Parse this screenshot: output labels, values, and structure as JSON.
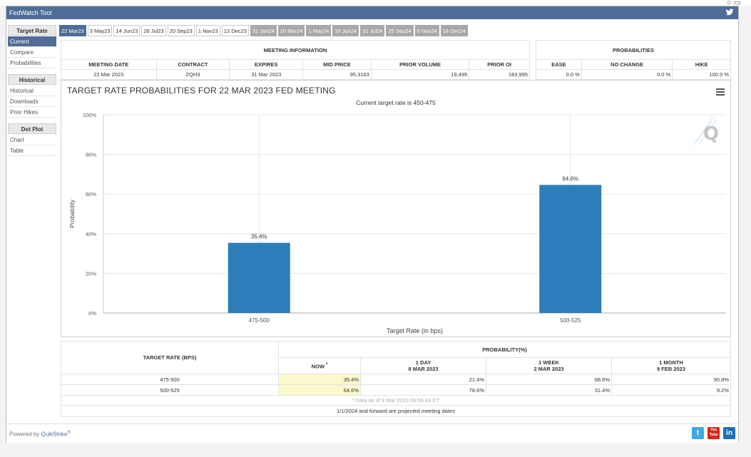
{
  "app": {
    "title": "FedWatch Tool",
    "powered_prefix": "Powered by ",
    "powered_brand": "QuikStrike",
    "powered_mark": "®"
  },
  "sidebar": {
    "sections": [
      {
        "head": "Target Rate",
        "items": [
          "Current",
          "Compare",
          "Probabilities"
        ]
      },
      {
        "head": "Historical",
        "items": [
          "Historical",
          "Downloads",
          "Prior Hikes"
        ]
      },
      {
        "head": "Dot Plot",
        "items": [
          "Chart",
          "Table"
        ]
      }
    ],
    "active": "Current"
  },
  "tabs": [
    "22 Mar23",
    "3 May23",
    "14 Jun23",
    "26 Jul23",
    "20 Sep23",
    "1 Nov23",
    "13 Dec23",
    "31 Jan24",
    "20 Mar24",
    "1 May24",
    "19 Jun24",
    "31 Jul24",
    "25 Sep24",
    "6 Nov24",
    "18 Dec24"
  ],
  "meeting_info": {
    "header": "MEETING INFORMATION",
    "columns": [
      "MEETING DATE",
      "CONTRACT",
      "EXPIRES",
      "MID PRICE",
      "PRIOR VOLUME",
      "PRIOR OI"
    ],
    "values": [
      "22 Mar 2023",
      "ZQH3",
      "31 Mar 2023",
      "95.3163",
      "19,495",
      "183,995"
    ]
  },
  "probabilities": {
    "header": "PROBABILITIES",
    "columns": [
      "EASE",
      "NO CHANGE",
      "HIKE"
    ],
    "values": [
      "0.0 %",
      "0.0 %",
      "100.0 %"
    ]
  },
  "chart": {
    "title": "TARGET RATE PROBABILITIES FOR 22 MAR 2023 FED MEETING",
    "subtitle": "Current target rate is 450-475"
  },
  "chart_data": {
    "type": "bar",
    "title": "TARGET RATE PROBABILITIES FOR 22 MAR 2023 FED MEETING",
    "subtitle": "Current target rate is 450-475",
    "categories": [
      "475-500",
      "500-525"
    ],
    "values": [
      35.4,
      64.6
    ],
    "data_labels": [
      "35.4%",
      "64.6%"
    ],
    "xlabel": "Target Rate (in bps)",
    "ylabel": "Probability",
    "ylim": [
      0,
      100
    ],
    "yticks": [
      "0%",
      "20%",
      "40%",
      "60%",
      "80%",
      "100%"
    ],
    "bar_color": "#2e7dbb",
    "grid": true
  },
  "bottom_table": {
    "target_header": "TARGET RATE (BPS)",
    "prob_header": "PROBABILITY(%)",
    "cols": [
      {
        "line1": "NOW",
        "line2": ""
      },
      {
        "line1": "1 DAY",
        "line2": "8 MAR 2023"
      },
      {
        "line1": "1 WEEK",
        "line2": "2 MAR 2023"
      },
      {
        "line1": "1 MONTH",
        "line2": "9 FEB 2023"
      }
    ],
    "now_mark": "*",
    "rows": [
      {
        "rate": "475-500",
        "vals": [
          "35.4%",
          "21.4%",
          "68.6%",
          "90.8%"
        ]
      },
      {
        "rate": "500-525",
        "vals": [
          "64.6%",
          "78.6%",
          "31.4%",
          "9.2%"
        ]
      }
    ],
    "note": "* Data as of 9 Mar 2023 09:05:43 CT",
    "footnote": "1/1/2024 and forward are projected meeting dates"
  },
  "social": {
    "twitter": "t",
    "youtube_top": "You",
    "youtube_bottom": "Tube",
    "linkedin": "in"
  },
  "colors": {
    "accent": "#4f6d96",
    "bar": "#2e7dbb",
    "highlight": "#fbf8cc"
  }
}
